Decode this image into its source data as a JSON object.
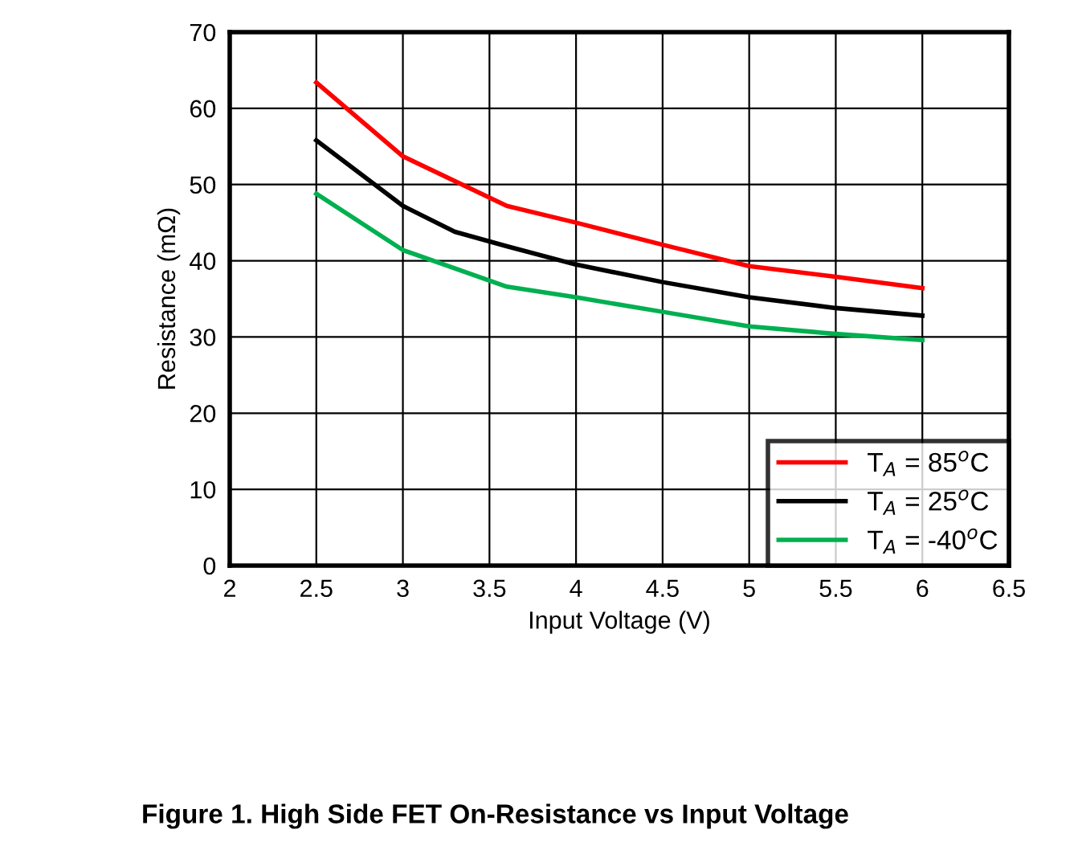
{
  "chart_data": {
    "type": "line",
    "title": "Figure 1. High Side FET On-Resistance vs Input Voltage",
    "xlabel": "Input Voltage (V)",
    "ylabel": "Resistance (mΩ)",
    "xlim": [
      2,
      6.5
    ],
    "xticks": [
      2,
      2.5,
      3,
      3.5,
      4,
      4.5,
      5,
      5.5,
      6,
      6.5
    ],
    "ylim": [
      0,
      70
    ],
    "yticks": [
      0,
      10,
      20,
      30,
      40,
      50,
      60,
      70
    ],
    "grid": true,
    "legend": "bottom right",
    "series": [
      {
        "name": "T$_{A}$ = 85$^{o}$C",
        "color": "#ff0000",
        "x": [
          2.5,
          3.0,
          3.6,
          4.0,
          4.5,
          5.0,
          5.5,
          6.0
        ],
        "values": [
          63.4,
          53.7,
          47.2,
          45.0,
          42.1,
          39.3,
          37.9,
          36.4
        ]
      },
      {
        "name": "T$_{A}$ = 25$^{o}$C",
        "color": "#000000",
        "x": [
          2.5,
          3.0,
          3.3,
          3.6,
          4.0,
          4.5,
          5.0,
          5.5,
          6.0
        ],
        "values": [
          55.8,
          47.2,
          43.8,
          41.9,
          39.5,
          37.2,
          35.2,
          33.8,
          32.8
        ]
      },
      {
        "name": "T$_{A}$ = -40$^{o}$C",
        "color": "#00b050",
        "x": [
          2.5,
          3.0,
          3.6,
          4.0,
          4.5,
          5.0,
          5.5,
          6.0
        ],
        "values": [
          48.8,
          41.4,
          36.6,
          35.2,
          33.3,
          31.4,
          30.4,
          29.6
        ]
      }
    ]
  }
}
